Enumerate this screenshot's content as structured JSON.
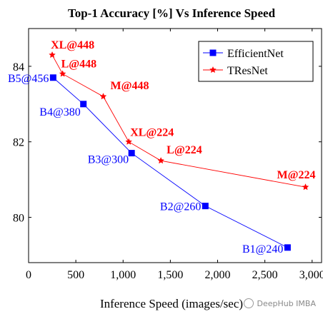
{
  "chart_data": {
    "type": "line",
    "title": "Top-1 Accuracy [%] Vs Inference Speed",
    "xlabel": "Inference Speed (images/sec)",
    "ylabel": "",
    "xlim": [
      0,
      3100
    ],
    "ylim": [
      78.8,
      85.0
    ],
    "x_ticks": [
      0,
      500,
      1000,
      1500,
      2000,
      2500,
      3000
    ],
    "x_tick_labels": [
      "0",
      "500",
      "1,000",
      "1,500",
      "2,000",
      "2,500",
      "3,000"
    ],
    "y_ticks": [
      80,
      82,
      84
    ],
    "y_tick_labels": [
      "80",
      "82",
      "84"
    ],
    "grid": false,
    "legend_position": "top-right",
    "series": [
      {
        "name": "EfficientNet",
        "color": "#0000ff",
        "marker": "square",
        "points": [
          {
            "x": 260,
            "y": 83.7,
            "label": "B5@456"
          },
          {
            "x": 580,
            "y": 83.0,
            "label": "B4@380"
          },
          {
            "x": 1090,
            "y": 81.7,
            "label": "B3@300"
          },
          {
            "x": 1870,
            "y": 80.3,
            "label": "B2@260"
          },
          {
            "x": 2740,
            "y": 79.2,
            "label": "B1@240"
          }
        ]
      },
      {
        "name": "TResNet",
        "color": "#ff0000",
        "marker": "star",
        "points": [
          {
            "x": 250,
            "y": 84.3,
            "label": "XL@448"
          },
          {
            "x": 360,
            "y": 83.8,
            "label": "L@448"
          },
          {
            "x": 790,
            "y": 83.2,
            "label": "M@448"
          },
          {
            "x": 1060,
            "y": 82.0,
            "label": "XL@224"
          },
          {
            "x": 1400,
            "y": 81.5,
            "label": "L@224"
          },
          {
            "x": 2930,
            "y": 80.8,
            "label": "M@224"
          }
        ]
      }
    ]
  },
  "watermark": "DeepHub IMBA"
}
